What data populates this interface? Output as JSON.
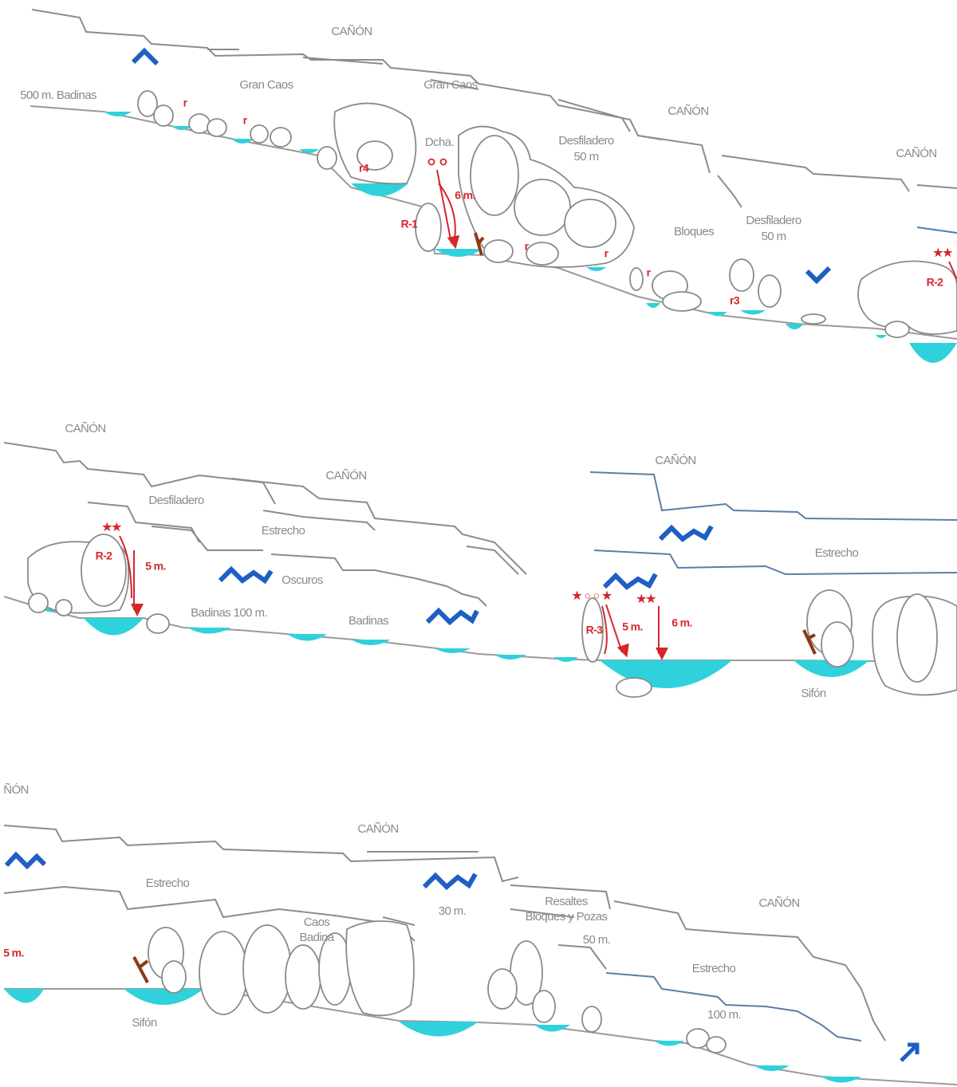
{
  "sections": [
    {
      "labels": [
        "CAÑÓN",
        "500 m. Badinas",
        "Gran Caos",
        "Gran Caos",
        "CAÑÓN",
        "CAÑÓN",
        "Dcha.",
        "Desfiladero",
        "50 m",
        "Bloques",
        "Desfiladero",
        "50 m"
      ],
      "marks": [
        "r",
        "r",
        "r4",
        "6 m.",
        "R-1",
        "r",
        "r",
        "r",
        "r3",
        "R-2"
      ]
    },
    {
      "labels": [
        "CAÑÓN",
        "CAÑÓN",
        "CAÑÓN",
        "Desfiladero",
        "Estrecho",
        "Oscuros",
        "Badinas 100 m.",
        "Badinas",
        "Estrecho",
        "Sifón"
      ],
      "marks": [
        "R-2",
        "5 m.",
        "R-3",
        "5 m.",
        "6 m."
      ]
    },
    {
      "labels": [
        "ÑÓN",
        "CAÑÓN",
        "Estrecho",
        "Caos",
        "Badina",
        "30 m.",
        "Resaltes",
        "Bloques y Pozas",
        "50 m.",
        "CAÑÓN",
        "Estrecho",
        "100 m.",
        "Sifón"
      ],
      "marks": [
        "5 m."
      ]
    }
  ]
}
